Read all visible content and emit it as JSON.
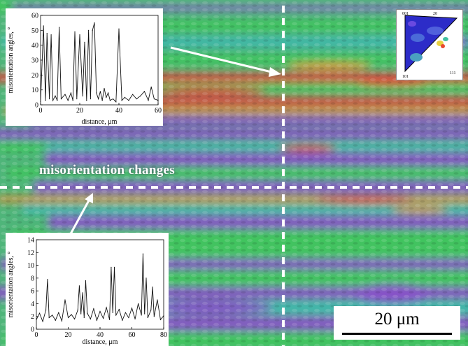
{
  "figure": {
    "annotation": "misorientation changes",
    "scale_bar": "20 μm",
    "ipf_key": {
      "corner_labels": [
        "001",
        "101",
        "111"
      ],
      "top_right_label": "20"
    },
    "colors": {
      "map_green": "#3ec75a",
      "map_purple": "#8a4fc9",
      "map_cyan": "#3fb8b0",
      "map_red": "#e0443c",
      "map_orange": "#e0903c",
      "profile_line": "#ffffff"
    }
  },
  "chart_data": [
    {
      "type": "line",
      "title": "",
      "xlabel": "distance, μm",
      "ylabel": "misorientation angles, °",
      "xlim": [
        0,
        60
      ],
      "ylim": [
        0,
        60
      ],
      "xticks": [
        0,
        20,
        40,
        60
      ],
      "yticks": [
        0,
        10,
        20,
        30,
        40,
        50,
        60
      ],
      "grid": false,
      "x": [
        0,
        1.5,
        2.5,
        3.3,
        4.5,
        5.4,
        6.3,
        7.5,
        8.5,
        9.5,
        10.5,
        12.5,
        14,
        15.5,
        16.5,
        17.5,
        18.5,
        20,
        21.5,
        22.5,
        23.5,
        24.5,
        25.5,
        26.5,
        27.5,
        28.5,
        29.5,
        30.5,
        31.5,
        32.5,
        33.5,
        34.5,
        35.5,
        37,
        38.5,
        40,
        41.5,
        43,
        45,
        47,
        49,
        51,
        53,
        55,
        56.5,
        58,
        60
      ],
      "y": [
        2,
        53,
        3,
        48,
        4,
        47,
        3,
        6,
        3,
        52,
        4,
        7,
        3,
        8,
        3,
        49,
        4,
        47,
        6,
        42,
        3,
        50,
        4,
        50,
        55,
        8,
        4,
        9,
        3,
        11,
        5,
        8,
        3,
        4,
        2,
        51,
        3,
        5,
        3,
        7,
        4,
        6,
        9,
        3,
        12,
        4,
        3
      ]
    },
    {
      "type": "line",
      "title": "",
      "xlabel": "distance, μm",
      "ylabel": "misorientation angles, °",
      "xlim": [
        0,
        80
      ],
      "ylim": [
        0,
        14
      ],
      "xticks": [
        0,
        20,
        40,
        60,
        80
      ],
      "yticks": [
        0,
        2,
        4,
        6,
        8,
        10,
        12,
        14
      ],
      "grid": false,
      "x": [
        0,
        2,
        4,
        6,
        7,
        8,
        10,
        12,
        14,
        16,
        18,
        20,
        22,
        24,
        26,
        27,
        28,
        29,
        30,
        31,
        32,
        34,
        36,
        38,
        40,
        42,
        44,
        46,
        47,
        48,
        49,
        50,
        52,
        54,
        56,
        58,
        60,
        62,
        64,
        66,
        67,
        68,
        69,
        70,
        72,
        73,
        74,
        76,
        78,
        80
      ],
      "y": [
        1.5,
        2.5,
        1.2,
        3,
        7.8,
        1.8,
        2.2,
        1.4,
        2.6,
        1.3,
        4.6,
        1.8,
        2.3,
        1.6,
        3,
        6.8,
        2.4,
        5.7,
        1.8,
        7.6,
        2.5,
        1.6,
        3.2,
        1.4,
        2.8,
        1.7,
        3.4,
        1.5,
        9.7,
        2.6,
        9.7,
        2.2,
        3.1,
        1.4,
        2.6,
        1.8,
        3.3,
        1.6,
        4,
        2.2,
        11.8,
        2.4,
        8,
        1.8,
        3,
        6.6,
        2,
        4.6,
        1.5,
        2.1
      ]
    }
  ]
}
